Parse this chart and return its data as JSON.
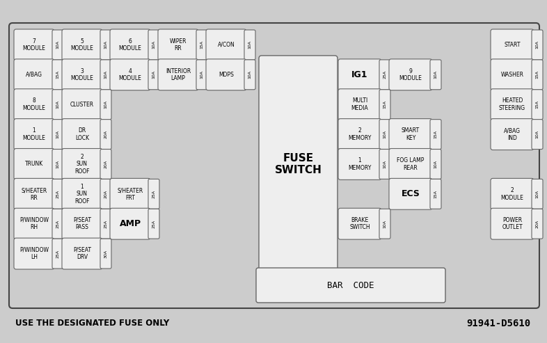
{
  "bg_color": "#cccccc",
  "box_fill": "#eeeeee",
  "box_edge": "#666666",
  "footer_text": "USE THE DESIGNATED FUSE ONLY",
  "footer_right": "91941-D5610",
  "barcode_label": "BAR  CODE",
  "fuse_switch_label": "FUSE\nSWITCH",
  "fuses": [
    {
      "label": "7\nMODULE",
      "amp": "10A",
      "col": 0,
      "row": 0
    },
    {
      "label": "5\nMODULE",
      "amp": "10A",
      "col": 1,
      "row": 0
    },
    {
      "label": "6\nMODULE",
      "amp": "10A",
      "col": 2,
      "row": 0
    },
    {
      "label": "WIPER\nRR",
      "amp": "15A",
      "col": 3,
      "row": 0
    },
    {
      "label": "A/CON",
      "amp": "10A",
      "col": 4,
      "row": 0
    },
    {
      "label": "START",
      "amp": "10A",
      "col": 8,
      "row": 0
    },
    {
      "label": "A/BAG",
      "amp": "15A",
      "col": 0,
      "row": 1
    },
    {
      "label": "3\nMODULE",
      "amp": "10A",
      "col": 1,
      "row": 1
    },
    {
      "label": "4\nMODULE",
      "amp": "10A",
      "col": 2,
      "row": 1
    },
    {
      "label": "INTERIOR\nLAMP",
      "amp": "10A",
      "col": 3,
      "row": 1
    },
    {
      "label": "MDPS",
      "amp": "10A",
      "col": 4,
      "row": 1
    },
    {
      "label": "IG1",
      "amp": "25A",
      "col": 5,
      "row": 1,
      "big": true
    },
    {
      "label": "9\nMODULE",
      "amp": "10A",
      "col": 6,
      "row": 1
    },
    {
      "label": "WASHER",
      "amp": "15A",
      "col": 8,
      "row": 1
    },
    {
      "label": "8\nMODULE",
      "amp": "10A",
      "col": 0,
      "row": 2
    },
    {
      "label": "CLUSTER",
      "amp": "10A",
      "col": 1,
      "row": 2
    },
    {
      "label": "MULTI\nMEDIA",
      "amp": "15A",
      "col": 5,
      "row": 2
    },
    {
      "label": "HEATED\nSTEERING",
      "amp": "15A",
      "col": 8,
      "row": 2
    },
    {
      "label": "1\nMODULE",
      "amp": "10A",
      "col": 0,
      "row": 3
    },
    {
      "label": "DR\nLOCK",
      "amp": "20A",
      "col": 1,
      "row": 3
    },
    {
      "label": "2\nMEMORY",
      "amp": "10A",
      "col": 5,
      "row": 3
    },
    {
      "label": "SMART\nKEY",
      "amp": "15A",
      "col": 6,
      "row": 3
    },
    {
      "label": "A/BAG\nIND",
      "amp": "10A",
      "col": 8,
      "row": 3
    },
    {
      "label": "TRUNK",
      "amp": "10A",
      "col": 0,
      "row": 4
    },
    {
      "label": "2\nSUN\nROOF",
      "amp": "20A",
      "col": 1,
      "row": 4
    },
    {
      "label": "1\nMEMORY",
      "amp": "10A",
      "col": 5,
      "row": 4
    },
    {
      "label": "FOG LAMP\nREAR",
      "amp": "10A",
      "col": 6,
      "row": 4
    },
    {
      "label": "S/HEATER\nRR",
      "amp": "25A",
      "col": 0,
      "row": 5
    },
    {
      "label": "1\nSUN\nROOF",
      "amp": "20A",
      "col": 1,
      "row": 5
    },
    {
      "label": "S/HEATER\nFRT",
      "amp": "25A",
      "col": 2,
      "row": 5
    },
    {
      "label": "ECS",
      "amp": "15A",
      "col": 6,
      "row": 5,
      "big": true
    },
    {
      "label": "2\nMODULE",
      "amp": "10A",
      "col": 8,
      "row": 5
    },
    {
      "label": "P/WINDOW\nRH",
      "amp": "25A",
      "col": 0,
      "row": 6
    },
    {
      "label": "P/SEAT\nPASS",
      "amp": "25A",
      "col": 1,
      "row": 6
    },
    {
      "label": "AMP",
      "amp": "25A",
      "col": 2,
      "row": 6,
      "big": true
    },
    {
      "label": "BRAKE\nSWITCH",
      "amp": "10A",
      "col": 5,
      "row": 6
    },
    {
      "label": "POWER\nOUTLET",
      "amp": "20A",
      "col": 8,
      "row": 6
    },
    {
      "label": "P/WINDOW\nLH",
      "amp": "25A",
      "col": 0,
      "row": 7
    },
    {
      "label": "P/SEAT\nDRV",
      "amp": "30A",
      "col": 1,
      "row": 7
    }
  ]
}
